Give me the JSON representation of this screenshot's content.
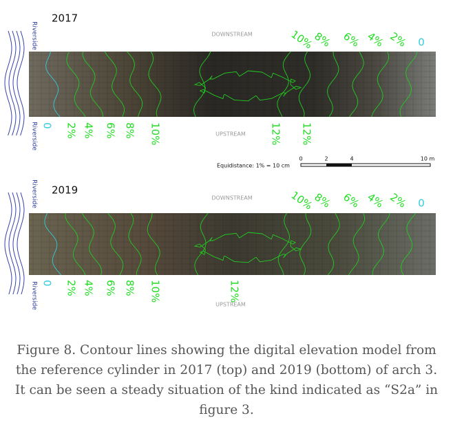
{
  "figure": {
    "panels": [
      {
        "year": "2017",
        "riverside": [
          "Riverside",
          "Riverside"
        ],
        "downstream": "DOWNSTREAM",
        "upstream": "UPSTREAM",
        "top_contours": [
          "10%",
          "8%",
          "6%",
          "4%",
          "2%",
          "0"
        ],
        "bottom_contours": [
          "0",
          "2%",
          "4%",
          "6%",
          "8%",
          "10%",
          "12%",
          "12%"
        ]
      },
      {
        "year": "2019",
        "riverside": [
          "Riverside",
          "Riverside"
        ],
        "downstream": "DOWNSTREAM",
        "upstream": "UPSTREAM",
        "top_contours": [
          "10%",
          "8%",
          "6%",
          "4%",
          "2%",
          "0"
        ],
        "bottom_contours": [
          "0",
          "2%",
          "4%",
          "6%",
          "8%",
          "10%",
          "12%"
        ]
      }
    ],
    "scale": {
      "equidistance": "Equidistance: 1% = 10 cm",
      "ticks": [
        "0",
        "2",
        "4",
        "10 m"
      ]
    },
    "caption": [
      "Figure 8. Contour lines showing the digital elevation model from",
      "the reference cylinder in 2017 (top) and 2019 (bottom) of arch 3.",
      "It can be seen a steady situation of the kind indicated as “S2a” in",
      "figure 3."
    ]
  }
}
